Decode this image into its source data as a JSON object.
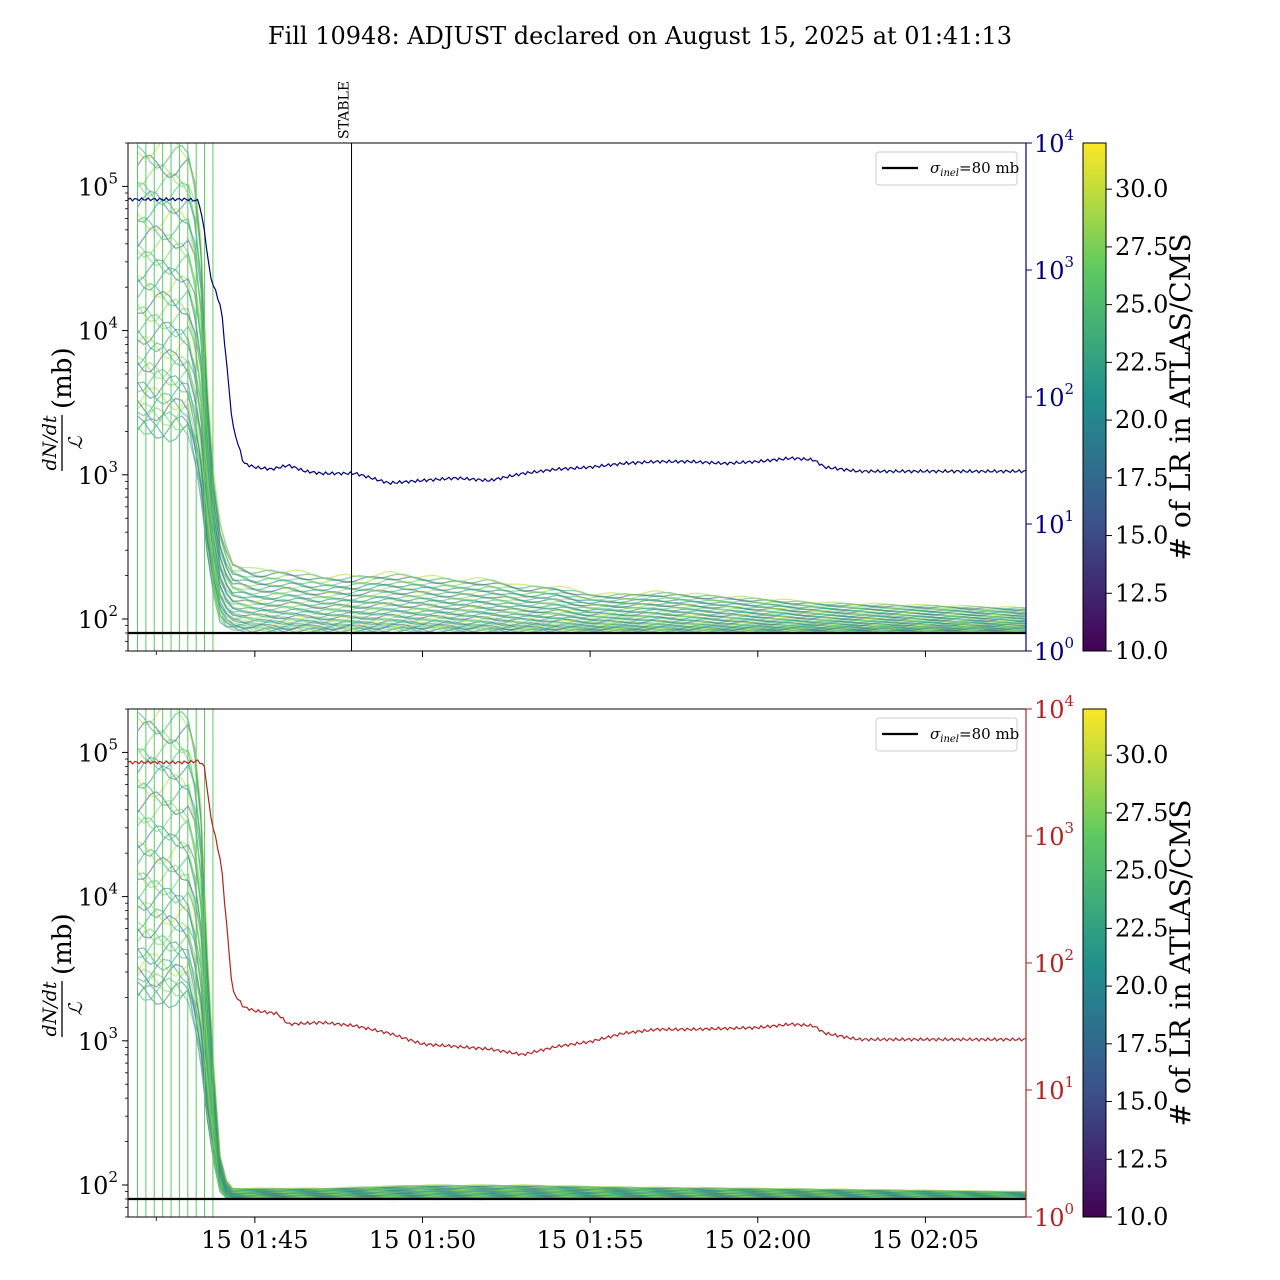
{
  "figure_title": "Fill 10948: ADJUST declared on August 15, 2025 at 01:41:13",
  "palette": {
    "top_line": "#000080",
    "bottom_line": "#b22222",
    "ref_line": "#000000",
    "viridis": [
      "#440154",
      "#3b528b",
      "#21918c",
      "#5ec962",
      "#fde725"
    ]
  },
  "chart_data": [
    {
      "type": "line",
      "panel": "top",
      "xlabel": "",
      "ylabel": "(mb)",
      "ylabel_fraction": {
        "numerator": "dN/dt",
        "denominator": "ℒ"
      },
      "yscale": "log",
      "ylim": [
        60,
        200000
      ],
      "y_ticks": [
        {
          "base": "10",
          "exp": "2"
        },
        {
          "base": "10",
          "exp": "3"
        },
        {
          "base": "10",
          "exp": "4"
        },
        {
          "base": "10",
          "exp": "5"
        }
      ],
      "y_tick_values": [
        100,
        1000,
        10000,
        100000
      ],
      "x_range_minutes": [
        "01:41:13",
        "02:08:00"
      ],
      "x_tick_labels": [],
      "right_axis": {
        "yscale": "log",
        "ylim": [
          1,
          10000
        ],
        "color": "#000080",
        "ticks": [
          {
            "base": "10",
            "exp": "0"
          },
          {
            "base": "10",
            "exp": "1"
          },
          {
            "base": "10",
            "exp": "2"
          },
          {
            "base": "10",
            "exp": "3"
          },
          {
            "base": "10",
            "exp": "4"
          }
        ],
        "tick_values": [
          1,
          10,
          100,
          1000,
          10000
        ]
      },
      "annotation": {
        "text": "STABLE",
        "x": "01:47:53"
      },
      "legend": {
        "position": "top-right",
        "entry": {
          "sym": "σ",
          "sub": "inel",
          "rest": "=80 mb"
        }
      },
      "reference_line_y": 80,
      "right_series": {
        "x": [
          "01:41:13",
          "01:43:00",
          "01:43:20",
          "01:43:30",
          "01:43:40",
          "01:44:00",
          "01:44:20",
          "01:44:40",
          "01:45:00",
          "01:45:30",
          "01:46:00",
          "01:46:30",
          "01:47:00",
          "01:48:00",
          "01:49:00",
          "01:50:00",
          "01:51:00",
          "01:52:00",
          "01:53:00",
          "01:54:00",
          "01:55:00",
          "01:56:00",
          "01:57:00",
          "01:58:00",
          "01:59:00",
          "02:00:00",
          "02:01:00",
          "02:01:40",
          "02:02:00",
          "02:03:00",
          "02:05:00",
          "02:08:00"
        ],
        "values": [
          3600,
          3600,
          3500,
          2000,
          900,
          500,
          60,
          30,
          28,
          27,
          29,
          26,
          25,
          25,
          21,
          22,
          23,
          22,
          25,
          27,
          28,
          30,
          31,
          31,
          30,
          31,
          33,
          32,
          28,
          26,
          26,
          26
        ]
      },
      "band": {
        "x": [
          "01:41:30",
          "01:43:00",
          "01:43:20",
          "01:43:40",
          "01:44:00",
          "01:44:20",
          "01:45:00",
          "01:46:00",
          "01:47:00",
          "01:48:00",
          "01:49:00",
          "01:50:00",
          "01:51:00",
          "01:52:00",
          "01:53:00",
          "01:54:00",
          "01:55:00",
          "01:56:00",
          "01:57:00",
          "01:58:00",
          "02:00:00",
          "02:02:00",
          "02:05:00",
          "02:08:00"
        ],
        "low": [
          2000,
          2000,
          1000,
          200,
          90,
          85,
          82,
          82,
          82,
          82,
          83,
          83,
          83,
          82,
          82,
          82,
          82,
          82,
          82,
          82,
          82,
          82,
          82,
          82
        ],
        "high": [
          200000,
          200000,
          100000,
          1500,
          400,
          250,
          220,
          220,
          200,
          200,
          210,
          200,
          190,
          190,
          170,
          170,
          150,
          150,
          155,
          150,
          140,
          130,
          125,
          120
        ]
      },
      "colorbar": {
        "label": "# of LR in ATLAS/CMS",
        "range": [
          10,
          32
        ],
        "ticks": [
          "10.0",
          "12.5",
          "15.0",
          "17.5",
          "20.0",
          "22.5",
          "25.0",
          "27.5",
          "30.0"
        ],
        "tick_values": [
          10,
          12.5,
          15,
          17.5,
          20,
          22.5,
          25,
          27.5,
          30
        ]
      }
    },
    {
      "type": "line",
      "panel": "bottom",
      "xlabel": "",
      "ylabel": "(mb)",
      "ylabel_fraction": {
        "numerator": "dN/dt",
        "denominator": "ℒ"
      },
      "yscale": "log",
      "ylim": [
        60,
        200000
      ],
      "y_ticks": [
        {
          "base": "10",
          "exp": "2"
        },
        {
          "base": "10",
          "exp": "3"
        },
        {
          "base": "10",
          "exp": "4"
        },
        {
          "base": "10",
          "exp": "5"
        }
      ],
      "y_tick_values": [
        100,
        1000,
        10000,
        100000
      ],
      "x_range_minutes": [
        "01:41:13",
        "02:08:00"
      ],
      "x_tick_labels": [
        "15 01:45",
        "15 01:50",
        "15 01:55",
        "15 02:00",
        "15 02:05"
      ],
      "x_tick_values": [
        "01:45:00",
        "01:50:00",
        "01:55:00",
        "02:00:00",
        "02:05:00"
      ],
      "right_axis": {
        "yscale": "log",
        "ylim": [
          1,
          10000
        ],
        "color": "#b22222",
        "ticks": [
          {
            "base": "10",
            "exp": "0"
          },
          {
            "base": "10",
            "exp": "1"
          },
          {
            "base": "10",
            "exp": "2"
          },
          {
            "base": "10",
            "exp": "3"
          },
          {
            "base": "10",
            "exp": "4"
          }
        ],
        "tick_values": [
          1,
          10,
          100,
          1000,
          10000
        ]
      },
      "legend": {
        "position": "top-right",
        "entry": {
          "sym": "σ",
          "sub": "inel",
          "rest": "=80 mb"
        }
      },
      "reference_line_y": 80,
      "right_series": {
        "x": [
          "01:41:13",
          "01:43:00",
          "01:43:20",
          "01:43:30",
          "01:43:40",
          "01:44:00",
          "01:44:20",
          "01:44:40",
          "01:45:00",
          "01:45:40",
          "01:46:00",
          "01:47:00",
          "01:48:00",
          "01:49:00",
          "01:50:00",
          "01:51:00",
          "01:52:00",
          "01:53:00",
          "01:54:00",
          "01:55:00",
          "01:56:00",
          "01:57:00",
          "01:58:00",
          "02:00:00",
          "02:01:00",
          "02:01:40",
          "02:02:00",
          "02:03:00",
          "02:05:00",
          "02:08:00"
        ],
        "values": [
          3800,
          3800,
          3900,
          3500,
          1500,
          600,
          60,
          45,
          42,
          40,
          33,
          34,
          32,
          28,
          23,
          22,
          21,
          19,
          22,
          24,
          28,
          30,
          30,
          31,
          33,
          32,
          28,
          25,
          25,
          25
        ]
      },
      "band": {
        "x": [
          "01:41:30",
          "01:43:00",
          "01:43:20",
          "01:43:40",
          "01:44:00",
          "01:44:20",
          "01:45:00",
          "01:47:00",
          "01:50:00",
          "01:53:00",
          "01:56:00",
          "02:00:00",
          "02:05:00",
          "02:08:00"
        ],
        "low": [
          2000,
          2000,
          1000,
          200,
          82,
          80,
          80,
          80,
          80,
          80,
          80,
          80,
          80,
          80
        ],
        "high": [
          200000,
          200000,
          100000,
          1500,
          120,
          95,
          95,
          95,
          100,
          100,
          97,
          95,
          92,
          90
        ]
      },
      "colorbar": {
        "label": "# of LR in ATLAS/CMS",
        "range": [
          10,
          32
        ],
        "ticks": [
          "10.0",
          "12.5",
          "15.0",
          "17.5",
          "20.0",
          "22.5",
          "25.0",
          "27.5",
          "30.0"
        ],
        "tick_values": [
          10,
          12.5,
          15,
          17.5,
          20,
          22.5,
          25,
          27.5,
          30
        ]
      }
    }
  ]
}
